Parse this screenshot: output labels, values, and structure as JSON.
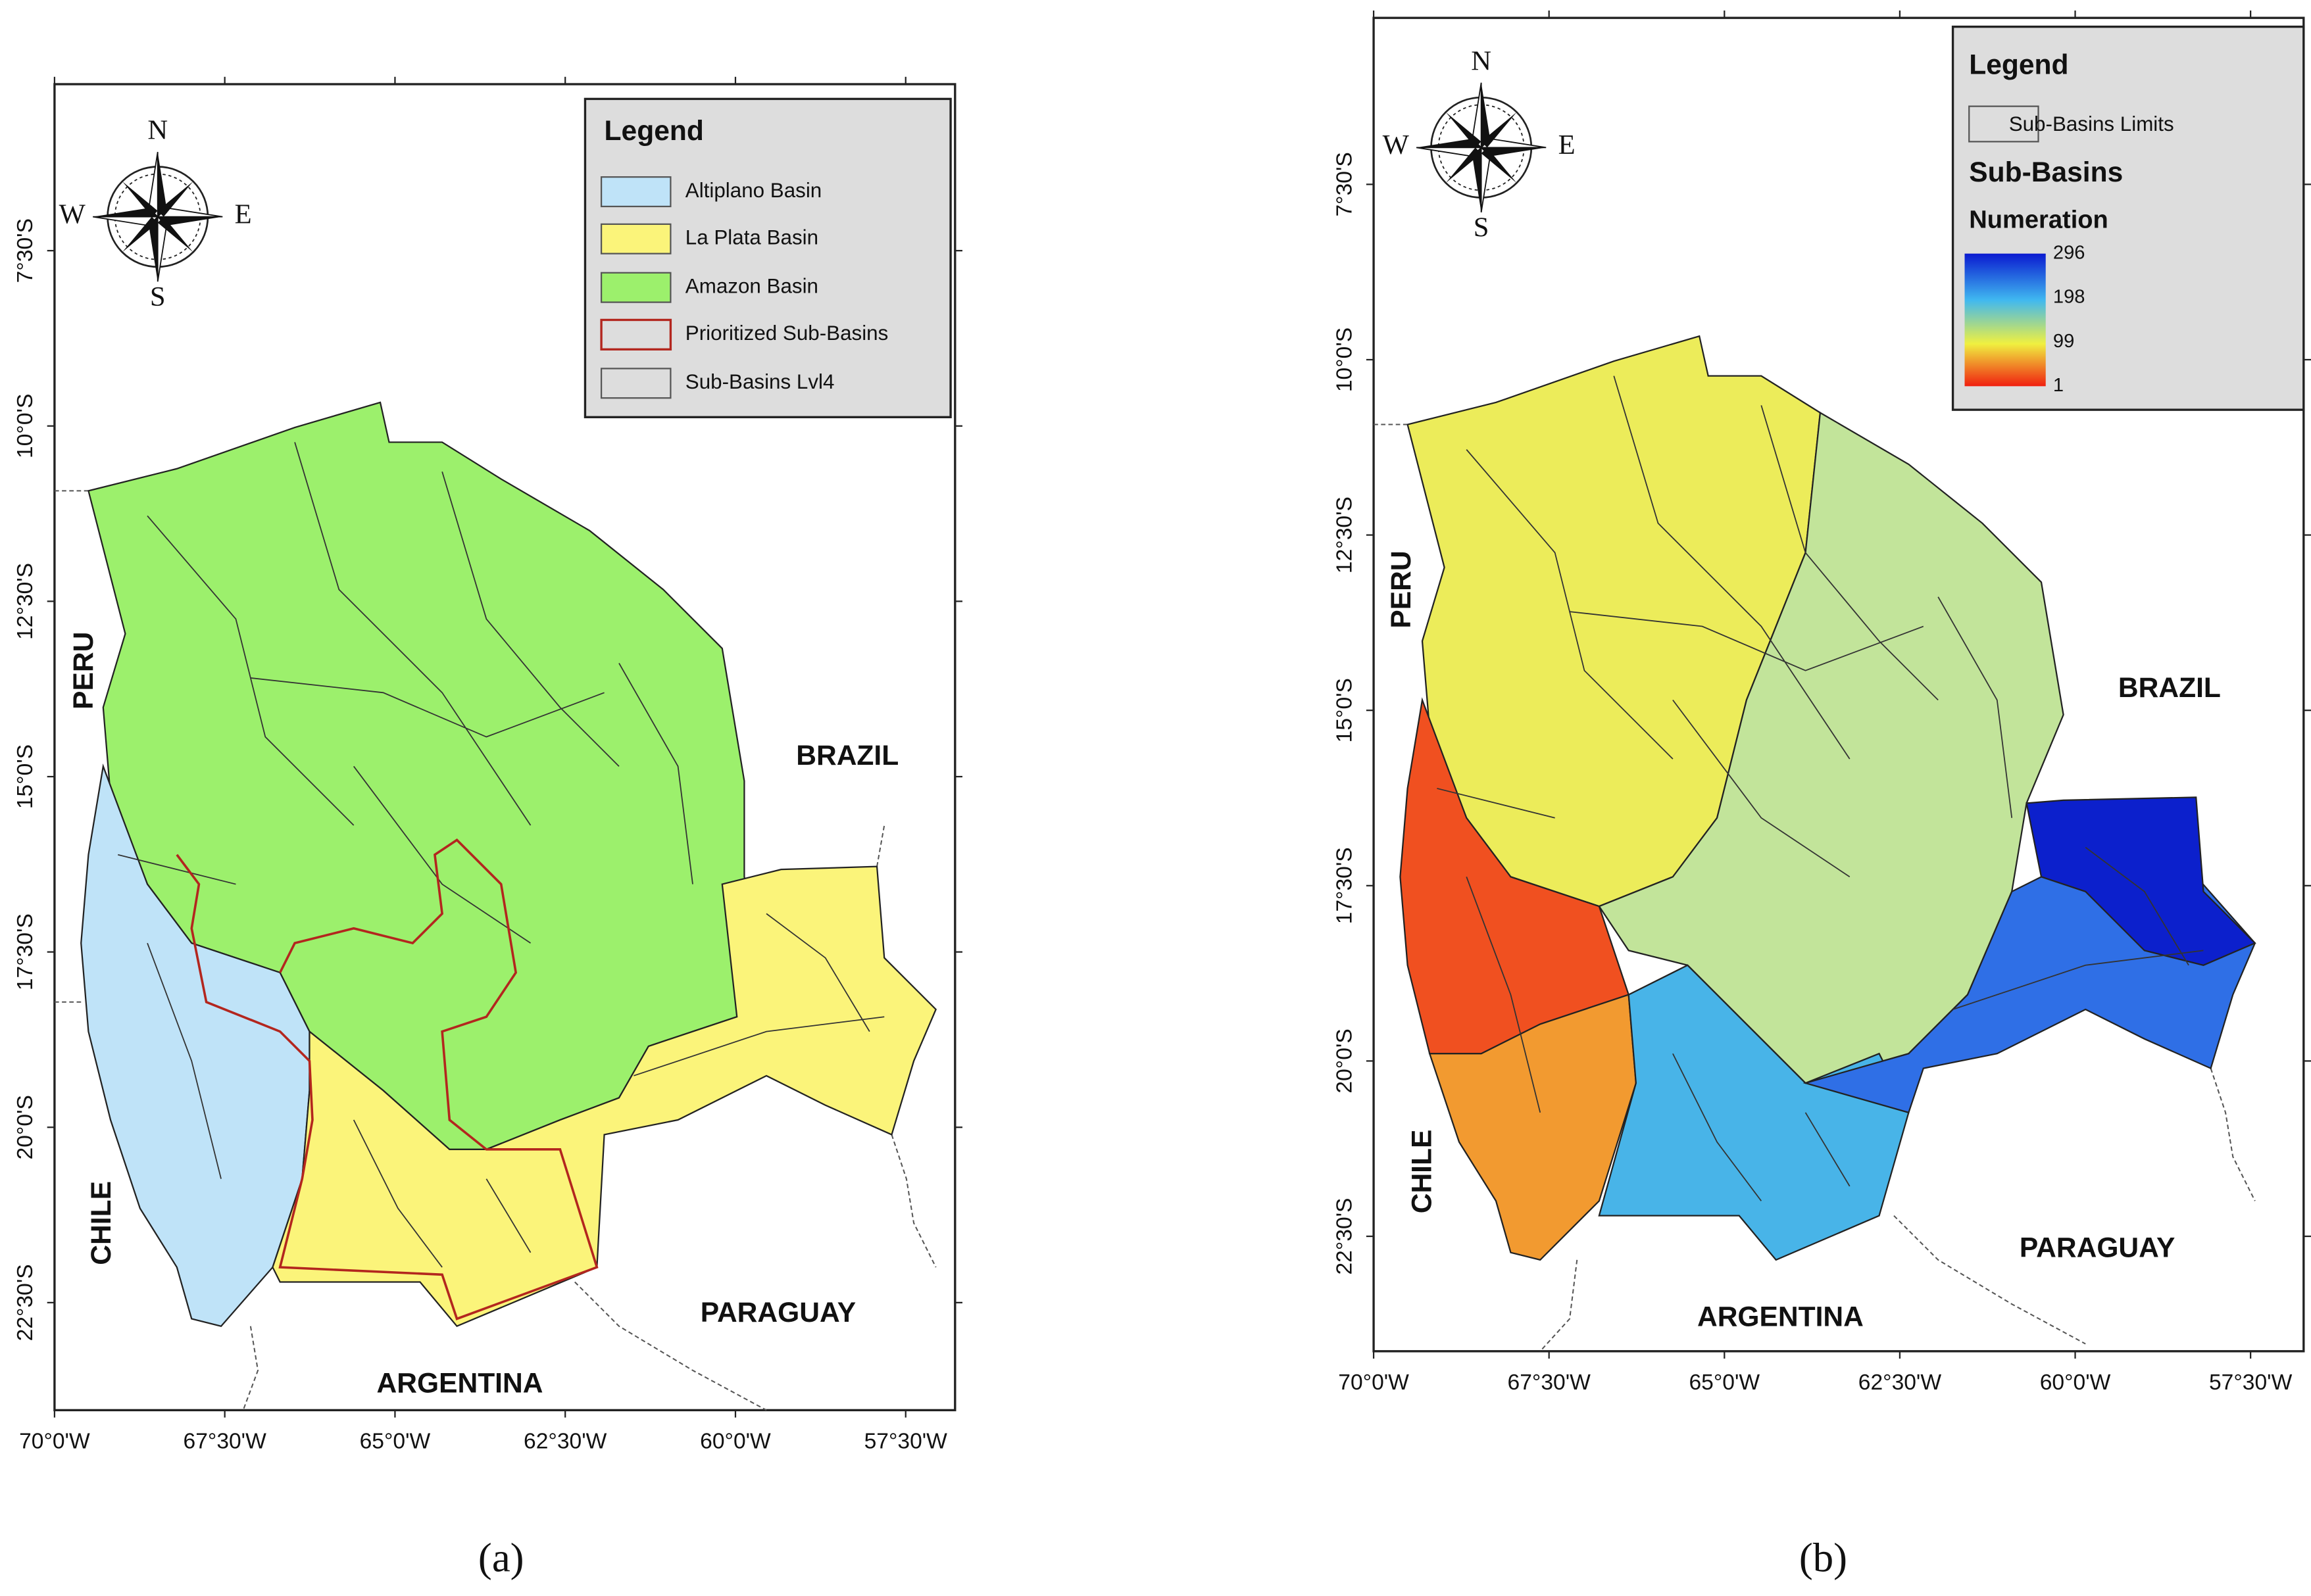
{
  "panels": [
    {
      "caption": "(a)",
      "legend": {
        "title": "Legend",
        "items": [
          "Altiplano Basin",
          "La Plata Basin",
          "Amazon Basin",
          "Prioritized Sub-Basins",
          "Sub-Basins Lvl4"
        ]
      },
      "lat_labels": [
        "7°30'S",
        "10°0'S",
        "12°30'S",
        "15°0'S",
        "17°30'S",
        "20°0'S",
        "22°30'S"
      ],
      "lon_labels": [
        "70°0'W",
        "67°30'W",
        "65°0'W",
        "62°30'W",
        "60°0'W",
        "57°30'W"
      ],
      "countries": [
        "PERU",
        "BRAZIL",
        "CHILE",
        "PARAGUAY",
        "ARGENTINA"
      ],
      "compass": [
        "N",
        "E",
        "S",
        "W"
      ]
    },
    {
      "caption": "(b)",
      "legend": {
        "title": "Legend",
        "items": [
          "Sub-Basins Limits"
        ],
        "subtitle": "Sub-Basins",
        "ramp_title": "Numeration",
        "ramp_labels": [
          296,
          198,
          99,
          1
        ]
      },
      "lat_labels": [
        "7°30'S",
        "10°0'S",
        "12°30'S",
        "15°0'S",
        "17°30'S",
        "20°0'S",
        "22°30'S"
      ],
      "lon_labels": [
        "70°0'W",
        "67°30'W",
        "65°0'W",
        "62°30'W",
        "60°0'W",
        "57°30'W"
      ],
      "countries": [
        "PERU",
        "BRAZIL",
        "CHILE",
        "PARAGUAY",
        "ARGENTINA"
      ],
      "compass": [
        "N",
        "E",
        "S",
        "W"
      ]
    }
  ]
}
